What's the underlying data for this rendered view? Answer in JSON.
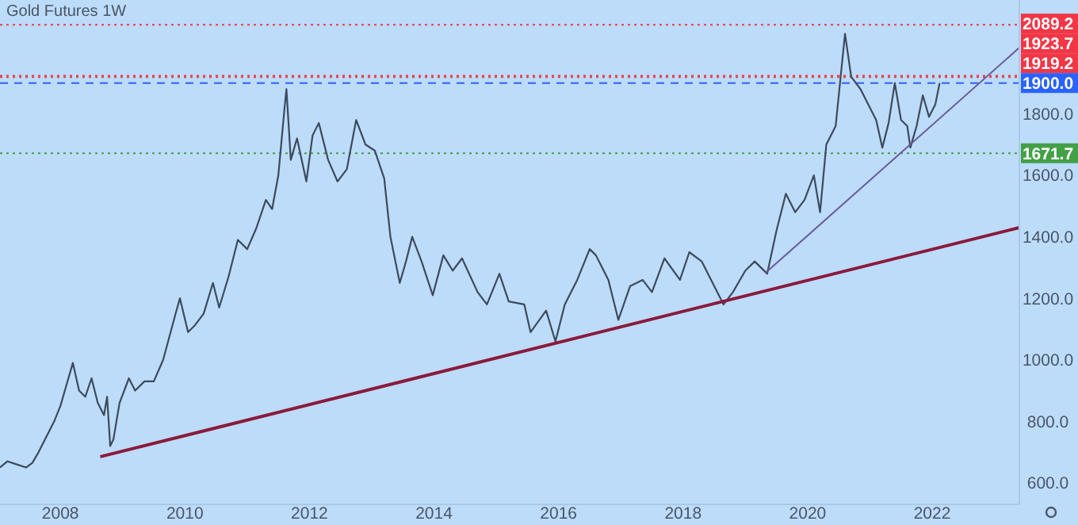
{
  "chart_data": {
    "type": "line",
    "title": "Gold Futures  1W",
    "xlim": [
      2007.03,
      2023.4
    ],
    "ylim": [
      530,
      2170
    ],
    "xticks": [
      2008,
      2010,
      2012,
      2014,
      2016,
      2018,
      2020,
      2022
    ],
    "yticks": [
      {
        "value": 600,
        "label": "600.0"
      },
      {
        "value": 800,
        "label": "800.0"
      },
      {
        "value": 1000,
        "label": "1000.0"
      },
      {
        "value": 1200,
        "label": "1200.0"
      },
      {
        "value": 1400,
        "label": "1400.0"
      },
      {
        "value": 1600,
        "label": "1600.0"
      },
      {
        "value": 1800,
        "label": "1800.0"
      }
    ],
    "grid": false,
    "series": [
      {
        "color": "#3d4a5c",
        "x": [
          2007.03,
          2007.15,
          2007.3,
          2007.45,
          2007.55,
          2007.65,
          2007.8,
          2007.9,
          2008.0,
          2008.1,
          2008.2,
          2008.3,
          2008.4,
          2008.5,
          2008.6,
          2008.7,
          2008.75,
          2008.8,
          2008.85,
          2008.95,
          2009.1,
          2009.2,
          2009.35,
          2009.5,
          2009.65,
          2009.85,
          2009.92,
          2010.05,
          2010.15,
          2010.3,
          2010.45,
          2010.55,
          2010.7,
          2010.85,
          2011.0,
          2011.15,
          2011.3,
          2011.4,
          2011.5,
          2011.6,
          2011.63,
          2011.7,
          2011.8,
          2011.95,
          2012.05,
          2012.15,
          2012.3,
          2012.45,
          2012.6,
          2012.75,
          2012.9,
          2013.05,
          2013.2,
          2013.3,
          2013.45,
          2013.55,
          2013.65,
          2013.8,
          2013.98,
          2014.15,
          2014.3,
          2014.45,
          2014.7,
          2014.85,
          2015.05,
          2015.2,
          2015.45,
          2015.55,
          2015.8,
          2015.95,
          2016.1,
          2016.3,
          2016.5,
          2016.6,
          2016.8,
          2016.96,
          2017.15,
          2017.35,
          2017.5,
          2017.7,
          2017.95,
          2018.1,
          2018.3,
          2018.5,
          2018.65,
          2018.8,
          2019.0,
          2019.15,
          2019.35,
          2019.5,
          2019.65,
          2019.8,
          2019.95,
          2020.1,
          2020.2,
          2020.3,
          2020.45,
          2020.55,
          2020.6,
          2020.7,
          2020.85,
          2020.95,
          2021.1,
          2021.2,
          2021.3,
          2021.4,
          2021.5,
          2021.6,
          2021.65,
          2021.75,
          2021.85,
          2021.95,
          2022.05,
          2022.12
        ],
        "values": [
          650,
          670,
          660,
          650,
          665,
          700,
          760,
          800,
          850,
          920,
          990,
          900,
          880,
          940,
          860,
          820,
          880,
          720,
          740,
          860,
          940,
          900,
          930,
          930,
          1000,
          1150,
          1200,
          1090,
          1110,
          1150,
          1250,
          1170,
          1270,
          1390,
          1360,
          1430,
          1520,
          1490,
          1600,
          1820,
          1880,
          1650,
          1720,
          1580,
          1730,
          1770,
          1650,
          1580,
          1620,
          1780,
          1700,
          1680,
          1590,
          1400,
          1250,
          1320,
          1400,
          1320,
          1210,
          1340,
          1290,
          1330,
          1220,
          1180,
          1280,
          1190,
          1180,
          1090,
          1160,
          1060,
          1180,
          1260,
          1360,
          1340,
          1260,
          1130,
          1240,
          1260,
          1220,
          1330,
          1260,
          1350,
          1320,
          1240,
          1180,
          1220,
          1290,
          1320,
          1280,
          1420,
          1540,
          1480,
          1520,
          1600,
          1480,
          1700,
          1760,
          1960,
          2060,
          1920,
          1880,
          1840,
          1780,
          1690,
          1770,
          1900,
          1780,
          1760,
          1690,
          1760,
          1860,
          1790,
          1830,
          1900
        ]
      },
      {
        "color": "#8b1a3a",
        "x": [
          2008.64,
          2023.4
        ],
        "values": [
          685,
          1430
        ]
      },
      {
        "color": "#6a5a9a",
        "x": [
          2019.32,
          2023.4
        ],
        "values": [
          1282,
          2015
        ]
      }
    ],
    "ref_lines": [
      {
        "axis": "y",
        "value": 2089.2,
        "label": "2089.2",
        "color": "#f23645",
        "line_style": "dotted"
      },
      {
        "axis": "y",
        "value": 1923.7,
        "label": "1923.7",
        "color": "#f23645",
        "line_style": "dotted"
      },
      {
        "axis": "y",
        "value": 1919.2,
        "label": "1919.2",
        "color": "#f23645",
        "line_style": "dotted"
      },
      {
        "axis": "y",
        "value": 1900,
        "label": "1900.0",
        "color": "#2962ff",
        "line_style": "dashed"
      },
      {
        "axis": "y",
        "value": 1671.7,
        "label": "1671.7",
        "color": "#43a047",
        "line_style": "dotted"
      }
    ]
  }
}
